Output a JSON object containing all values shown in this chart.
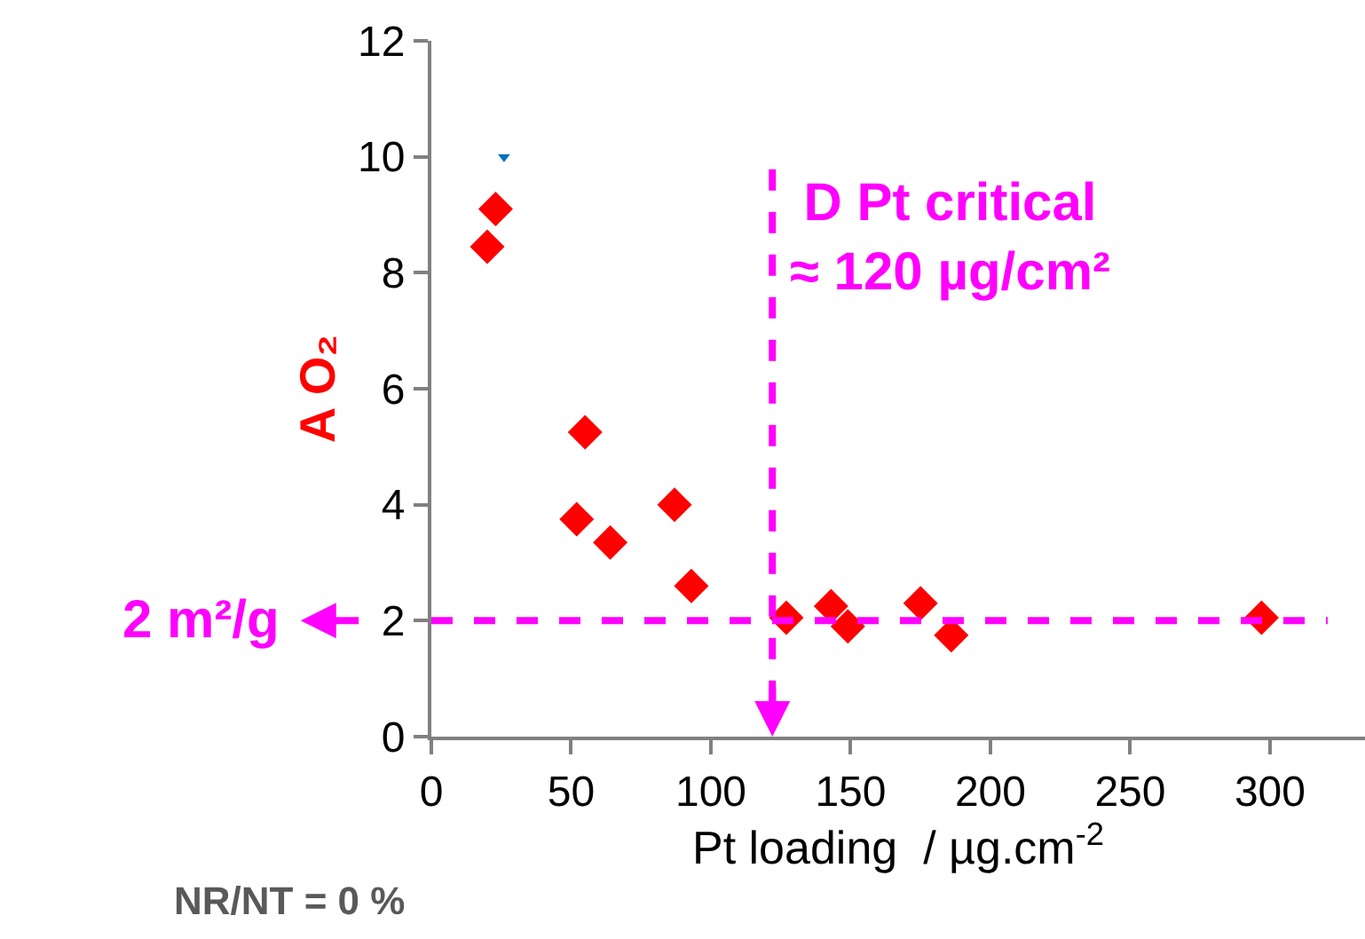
{
  "chart_data": {
    "type": "scatter",
    "xlabel": "Pt loading  / µg.cm$^{-2}$",
    "ylabel": "A O₂",
    "series": [
      {
        "color": "#ff0000",
        "marker": "diamond",
        "x": [
          20,
          23,
          52,
          55,
          64,
          87,
          93,
          127,
          143,
          149,
          175,
          186,
          297
        ],
        "values": [
          8.45,
          9.1,
          3.75,
          5.25,
          3.35,
          4.0,
          2.6,
          2.05,
          2.25,
          1.9,
          2.3,
          1.75,
          2.05
        ]
      },
      {
        "color": "#0070c0",
        "marker": "triangle",
        "x": [
          26
        ],
        "values": [
          10
        ]
      }
    ],
    "xlim": [
      0,
      334
    ],
    "xticks": [
      0,
      50,
      100,
      150,
      200,
      250,
      300
    ],
    "ylim": [
      0,
      12
    ],
    "yticks": [
      0,
      2,
      4,
      6,
      8,
      10,
      12
    ],
    "ref_lines": [
      {
        "axis": "x",
        "value": 122,
        "label": "D Pt critical\n≈ 120 µg/cm²",
        "color": "#ff00ff",
        "line_style": "dashed"
      },
      {
        "axis": "y",
        "value": 2,
        "label": "2 m²/g",
        "color": "#ff00ff",
        "line_style": "dashed"
      }
    ],
    "annotations": [
      "NR/NT = 0 %"
    ]
  }
}
